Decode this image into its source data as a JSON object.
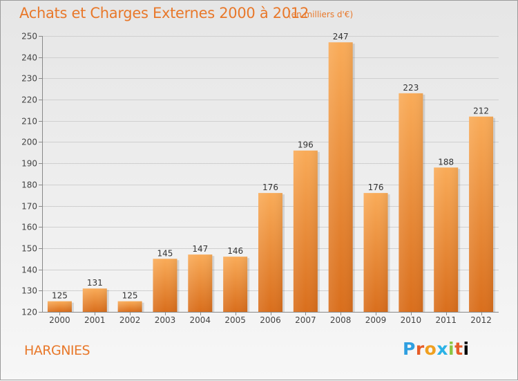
{
  "header": {
    "title": "Achats et Charges Externes 2000 à 2012",
    "subtitle": "(en milliers d'€)"
  },
  "footer": {
    "town": "HARGNIES",
    "logo": [
      "P",
      "r",
      "o",
      "x",
      "i",
      "t",
      "i"
    ]
  },
  "colors": {
    "accent": "#e8782a",
    "bar_light": "#f9ab58",
    "bar_dark": "#d96e1c"
  },
  "chart_data": {
    "type": "bar",
    "title": "Achats et Charges Externes 2000 à 2012",
    "subtitle": "(en milliers d'€)",
    "categories": [
      "2000",
      "2001",
      "2002",
      "2003",
      "2004",
      "2005",
      "2006",
      "2007",
      "2008",
      "2009",
      "2010",
      "2011",
      "2012"
    ],
    "values": [
      125,
      131,
      125,
      145,
      147,
      146,
      176,
      196,
      247,
      176,
      223,
      188,
      212
    ],
    "xlabel": "",
    "ylabel": "",
    "ylim": [
      120,
      250
    ],
    "yticks": [
      120,
      130,
      140,
      150,
      160,
      170,
      180,
      190,
      200,
      210,
      220,
      230,
      240,
      250
    ],
    "grid": true,
    "data_labels": true
  }
}
